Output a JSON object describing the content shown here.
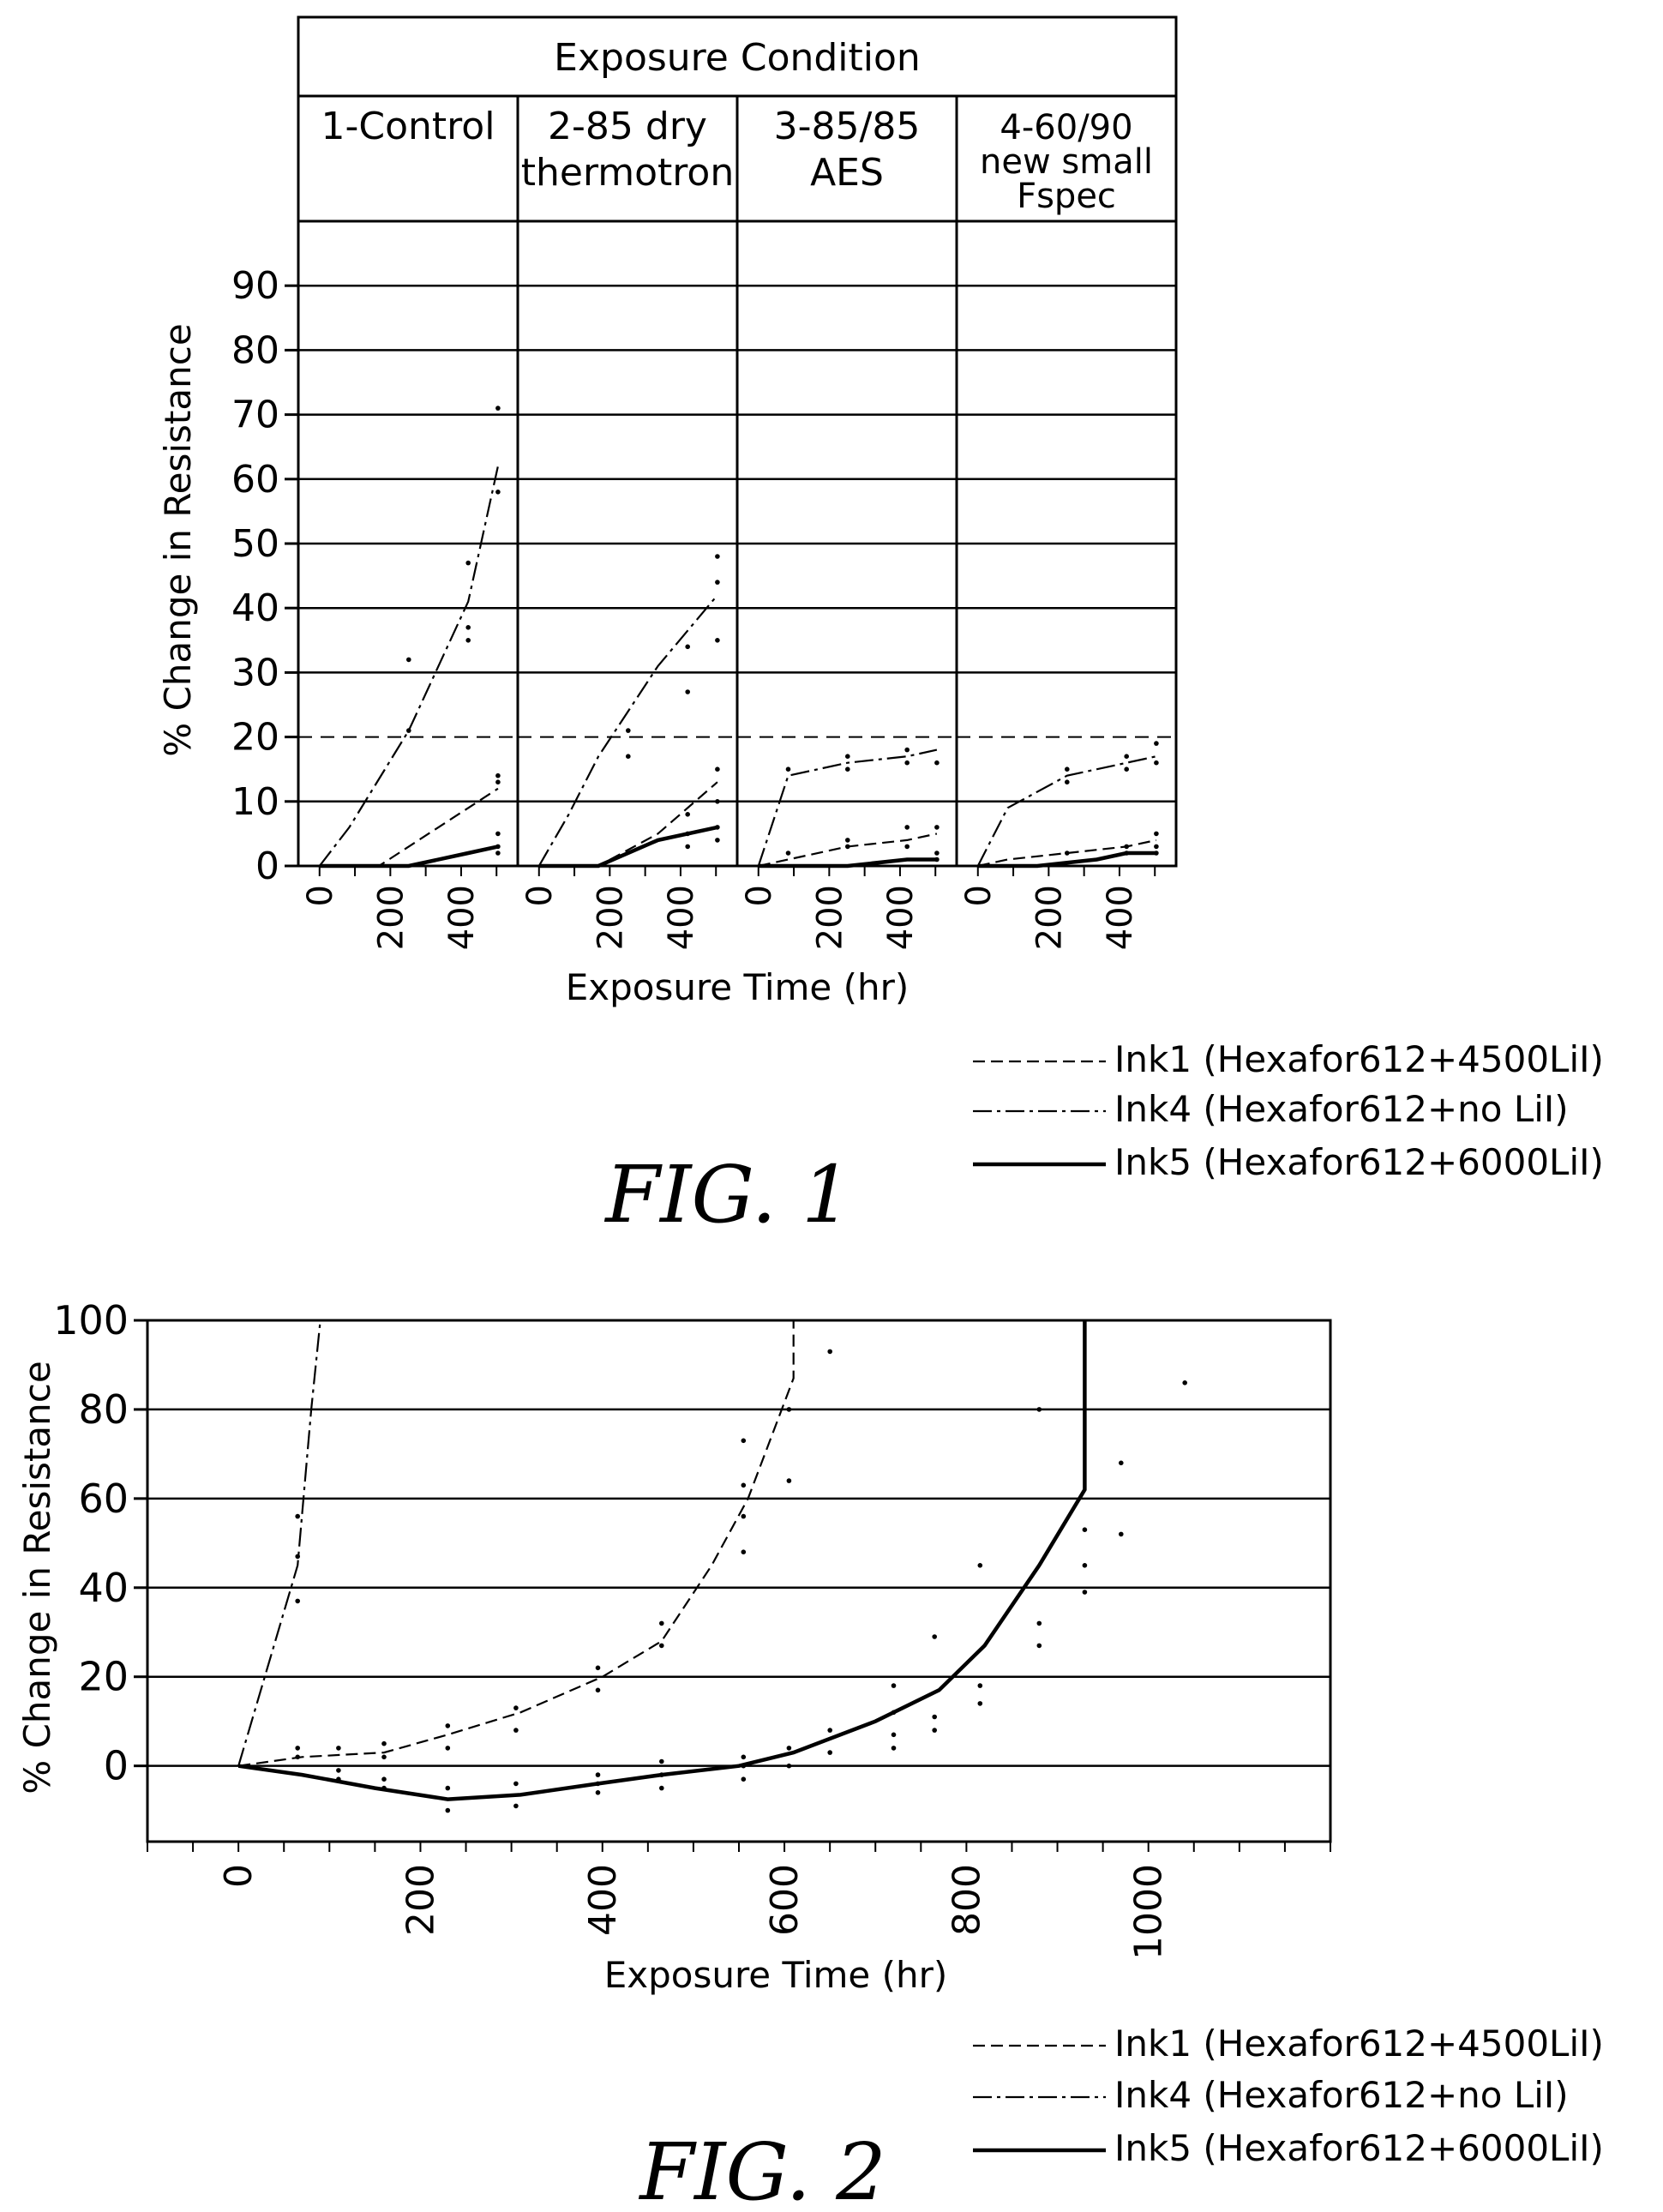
{
  "chart_data": [
    {
      "type": "line",
      "figure_label": "FIG.  1",
      "header": "Exposure Condition",
      "panels": [
        {
          "label_lines": [
            "1-Control"
          ]
        },
        {
          "label_lines": [
            "2-85 dry",
            "thermotron"
          ]
        },
        {
          "label_lines": [
            "3-85/85",
            "AES"
          ]
        },
        {
          "label_lines": [
            "4-60/90",
            "new small",
            "Fspec"
          ]
        }
      ],
      "xlabel": "Exposure Time (hr)",
      "ylabel": "% Change in Resistance",
      "xlim": [
        -60,
        560
      ],
      "ylim": [
        0,
        100
      ],
      "x_ticks": [
        0,
        200,
        400
      ],
      "x_minor_ticks": [
        0,
        100,
        200,
        300,
        400,
        500
      ],
      "y_ticks": [
        0,
        10,
        20,
        30,
        40,
        50,
        60,
        70,
        80,
        90
      ],
      "reference_line": 20,
      "legend_position": "below-right",
      "grid": true,
      "series_panels": [
        {
          "ink1": [
            [
              0,
              0
            ],
            [
              168,
              0
            ],
            [
              336,
              6
            ],
            [
              504,
              12
            ]
          ],
          "ink4": [
            [
              0,
              0
            ],
            [
              84,
              6
            ],
            [
              252,
              21
            ],
            [
              420,
              41
            ],
            [
              504,
              62
            ]
          ],
          "ink5": [
            [
              0,
              0
            ],
            [
              252,
              0
            ],
            [
              420,
              2
            ],
            [
              504,
              3
            ]
          ],
          "points": [
            [
              252,
              32
            ],
            [
              252,
              21
            ],
            [
              420,
              47
            ],
            [
              420,
              37
            ],
            [
              420,
              35
            ],
            [
              504,
              71
            ],
            [
              504,
              58
            ],
            [
              504,
              14
            ],
            [
              504,
              13
            ],
            [
              504,
              5
            ],
            [
              504,
              3
            ],
            [
              504,
              2
            ]
          ]
        },
        {
          "ink1": [
            [
              0,
              0
            ],
            [
              168,
              0
            ],
            [
              336,
              5
            ],
            [
              504,
              13
            ]
          ],
          "ink4": [
            [
              0,
              0
            ],
            [
              84,
              8
            ],
            [
              168,
              17
            ],
            [
              336,
              31
            ],
            [
              504,
              42
            ]
          ],
          "ink5": [
            [
              0,
              0
            ],
            [
              168,
              0
            ],
            [
              336,
              4
            ],
            [
              504,
              6
            ]
          ],
          "points": [
            [
              252,
              21
            ],
            [
              252,
              17
            ],
            [
              420,
              34
            ],
            [
              420,
              27
            ],
            [
              504,
              48
            ],
            [
              504,
              44
            ],
            [
              504,
              35
            ],
            [
              420,
              8
            ],
            [
              420,
              5
            ],
            [
              504,
              15
            ],
            [
              504,
              10
            ],
            [
              420,
              3
            ],
            [
              504,
              6
            ],
            [
              504,
              4
            ]
          ]
        },
        {
          "ink1": [
            [
              0,
              0
            ],
            [
              84,
              1
            ],
            [
              252,
              3
            ],
            [
              420,
              4
            ],
            [
              504,
              5
            ]
          ],
          "ink4": [
            [
              0,
              0
            ],
            [
              84,
              14
            ],
            [
              252,
              16
            ],
            [
              420,
              17
            ],
            [
              504,
              18
            ]
          ],
          "ink5": [
            [
              0,
              0
            ],
            [
              252,
              0
            ],
            [
              420,
              1
            ],
            [
              504,
              1
            ]
          ],
          "points": [
            [
              84,
              15
            ],
            [
              252,
              17
            ],
            [
              252,
              15
            ],
            [
              420,
              18
            ],
            [
              420,
              16
            ],
            [
              504,
              16
            ],
            [
              84,
              2
            ],
            [
              252,
              4
            ],
            [
              252,
              3
            ],
            [
              420,
              6
            ],
            [
              420,
              3
            ],
            [
              504,
              6
            ],
            [
              504,
              2
            ],
            [
              504,
              1
            ]
          ]
        },
        {
          "ink1": [
            [
              0,
              0
            ],
            [
              84,
              1
            ],
            [
              252,
              2
            ],
            [
              420,
              3
            ],
            [
              504,
              4
            ]
          ],
          "ink4": [
            [
              0,
              0
            ],
            [
              84,
              9
            ],
            [
              252,
              14
            ],
            [
              420,
              16
            ],
            [
              504,
              17
            ]
          ],
          "ink5": [
            [
              0,
              0
            ],
            [
              168,
              0
            ],
            [
              336,
              1
            ],
            [
              420,
              2
            ],
            [
              504,
              2
            ]
          ],
          "points": [
            [
              252,
              15
            ],
            [
              252,
              13
            ],
            [
              420,
              17
            ],
            [
              420,
              15
            ],
            [
              504,
              19
            ],
            [
              504,
              16
            ],
            [
              252,
              2
            ],
            [
              420,
              3
            ],
            [
              420,
              2
            ],
            [
              504,
              5
            ],
            [
              504,
              3
            ],
            [
              504,
              2
            ]
          ]
        }
      ],
      "legend": [
        {
          "key": "ink1",
          "label": "Ink1  (Hexafor612+4500LiI)"
        },
        {
          "key": "ink4",
          "label": "Ink4  (Hexafor612+no LiI)"
        },
        {
          "key": "ink5",
          "label": "Ink5  (Hexafor612+6000LiI)"
        }
      ]
    },
    {
      "type": "line",
      "figure_label": "FIG.  2",
      "xlabel": "Exposure Time (hr)",
      "ylabel": "% Change in Resistance",
      "xlim": [
        -100,
        1200
      ],
      "ylim": [
        -17,
        100
      ],
      "x_ticks": [
        0,
        200,
        400,
        600,
        800,
        1000
      ],
      "y_ticks": [
        0,
        20,
        40,
        60,
        80,
        100
      ],
      "reference_line": 20,
      "legend_position": "below-right",
      "grid": true,
      "series": [
        {
          "key": "ink1",
          "values": [
            [
              0,
              0
            ],
            [
              70,
              2
            ],
            [
              160,
              3
            ],
            [
              230,
              7
            ],
            [
              310,
              12
            ],
            [
              400,
              20
            ],
            [
              465,
              28
            ],
            [
              520,
              45
            ],
            [
              560,
              60
            ],
            [
              610,
              87
            ],
            [
              610,
              100
            ]
          ]
        },
        {
          "key": "ink4",
          "values": [
            [
              0,
              0
            ],
            [
              65,
              45
            ],
            [
              80,
              80
            ],
            [
              90,
              100
            ]
          ]
        },
        {
          "key": "ink5",
          "values": [
            [
              0,
              0
            ],
            [
              70,
              -2
            ],
            [
              150,
              -5
            ],
            [
              230,
              -7.5
            ],
            [
              310,
              -6.5
            ],
            [
              395,
              -4
            ],
            [
              465,
              -2
            ],
            [
              550,
              0
            ],
            [
              610,
              3
            ],
            [
              700,
              10
            ],
            [
              770,
              17
            ],
            [
              820,
              27
            ],
            [
              880,
              45
            ],
            [
              930,
              62
            ],
            [
              930,
              100
            ]
          ]
        }
      ],
      "points": [
        [
          65,
          56
        ],
        [
          65,
          47
        ],
        [
          65,
          37
        ],
        [
          65,
          4
        ],
        [
          65,
          2
        ],
        [
          110,
          4
        ],
        [
          110,
          -1
        ],
        [
          110,
          -3
        ],
        [
          160,
          5
        ],
        [
          160,
          2
        ],
        [
          160,
          -3
        ],
        [
          160,
          -5
        ],
        [
          230,
          9
        ],
        [
          230,
          4
        ],
        [
          230,
          -5
        ],
        [
          230,
          -10
        ],
        [
          305,
          13
        ],
        [
          305,
          8
        ],
        [
          305,
          -4
        ],
        [
          305,
          -9
        ],
        [
          395,
          22
        ],
        [
          395,
          17
        ],
        [
          395,
          -2
        ],
        [
          395,
          -4
        ],
        [
          395,
          -6
        ],
        [
          465,
          32
        ],
        [
          465,
          27
        ],
        [
          465,
          1
        ],
        [
          465,
          -2
        ],
        [
          465,
          -5
        ],
        [
          555,
          73
        ],
        [
          555,
          63
        ],
        [
          555,
          56
        ],
        [
          555,
          48
        ],
        [
          555,
          2
        ],
        [
          555,
          0
        ],
        [
          555,
          -3
        ],
        [
          605,
          80
        ],
        [
          605,
          64
        ],
        [
          605,
          4
        ],
        [
          605,
          0
        ],
        [
          650,
          93
        ],
        [
          650,
          8
        ],
        [
          650,
          3
        ],
        [
          720,
          18
        ],
        [
          720,
          12
        ],
        [
          720,
          7
        ],
        [
          720,
          4
        ],
        [
          765,
          29
        ],
        [
          765,
          11
        ],
        [
          765,
          8
        ],
        [
          815,
          45
        ],
        [
          815,
          18
        ],
        [
          815,
          14
        ],
        [
          880,
          80
        ],
        [
          880,
          32
        ],
        [
          880,
          27
        ],
        [
          930,
          53
        ],
        [
          930,
          45
        ],
        [
          930,
          39
        ],
        [
          970,
          68
        ],
        [
          970,
          52
        ],
        [
          1040,
          86
        ]
      ],
      "legend": [
        {
          "key": "ink1",
          "label": "Ink1  (Hexafor612+4500LiI)"
        },
        {
          "key": "ink4",
          "label": "Ink4  (Hexafor612+no LiI)"
        },
        {
          "key": "ink5",
          "label": "Ink5  (Hexafor612+6000LiI)"
        }
      ]
    }
  ]
}
